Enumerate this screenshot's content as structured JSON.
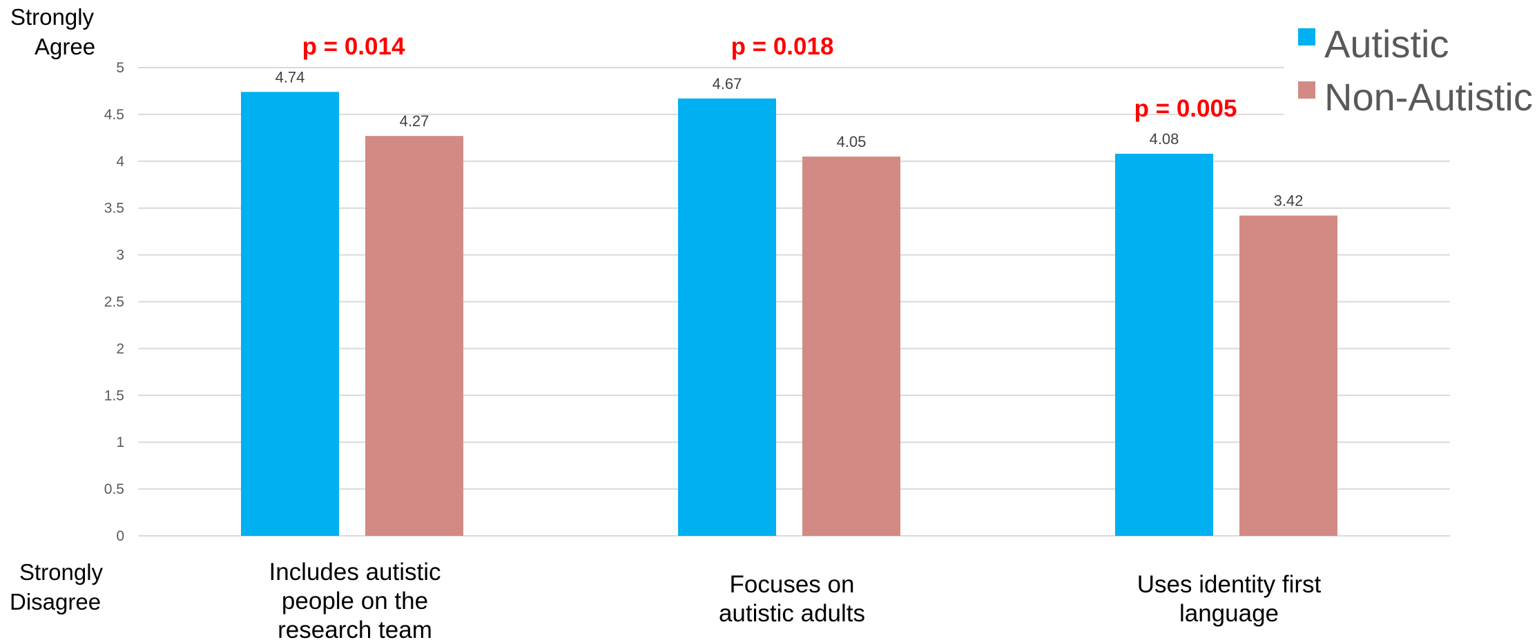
{
  "chart_data": {
    "type": "bar",
    "categories": [
      [
        "Includes autistic",
        "people on the",
        "research team"
      ],
      [
        "Focuses on",
        "autistic adults"
      ],
      [
        "Uses identity first",
        "language"
      ]
    ],
    "series": [
      {
        "name": "Autistic",
        "values": [
          4.74,
          4.67,
          4.08
        ],
        "color": "#00b0f0"
      },
      {
        "name": "Non-Autistic",
        "values": [
          4.27,
          4.05,
          3.42
        ],
        "color": "#d48a84"
      }
    ],
    "data_labels": [
      [
        "4.74",
        "4.67",
        "4.08"
      ],
      [
        "4.27",
        "4.05",
        "3.42"
      ]
    ],
    "p_values": [
      "p = 0.014",
      "p = 0.018",
      "p = 0.005"
    ],
    "y_top_label": [
      "Strongly",
      "Agree"
    ],
    "y_bottom_label": [
      "Strongly",
      "Disagree"
    ],
    "yticks": [
      "0",
      "0.5",
      "1",
      "1.5",
      "2",
      "2.5",
      "3",
      "3.5",
      "4",
      "4.5",
      "5"
    ],
    "ylim": [
      0,
      5
    ],
    "grid": true,
    "legend_position": "top-right"
  }
}
